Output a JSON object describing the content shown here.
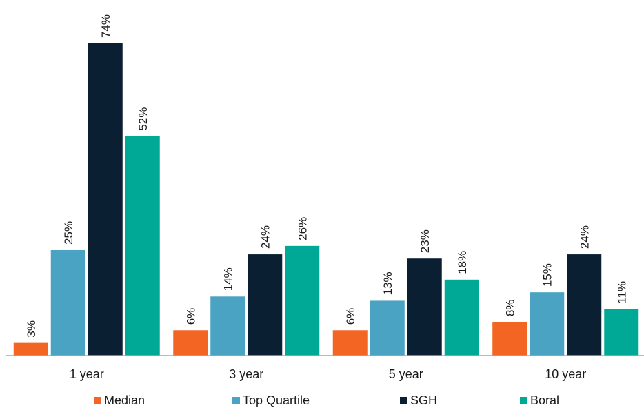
{
  "chart_data": {
    "type": "bar",
    "title": "",
    "xlabel": "",
    "ylabel": "",
    "categories": [
      "1 year",
      "3 year",
      "5 year",
      "10 year"
    ],
    "series": [
      {
        "name": "Median",
        "color": "#f26522",
        "values": [
          3,
          6,
          6,
          8
        ],
        "labels": [
          "3%",
          "6%",
          "6%",
          "8%"
        ]
      },
      {
        "name": "Top Quartile",
        "color": "#4ba3c3",
        "values": [
          25,
          14,
          13,
          15
        ],
        "labels": [
          "25%",
          "14%",
          "13%",
          "15%"
        ]
      },
      {
        "name": "SGH",
        "color": "#0b1f33",
        "values": [
          74,
          24,
          23,
          24
        ],
        "labels": [
          "74%",
          "24%",
          "23%",
          "24%"
        ]
      },
      {
        "name": "Boral",
        "color": "#00a896",
        "values": [
          52,
          26,
          18,
          11
        ],
        "labels": [
          "52%",
          "26%",
          "18%",
          "11%"
        ]
      }
    ],
    "ylim": [
      0,
      78
    ],
    "grid": false,
    "legend_position": "bottom"
  }
}
